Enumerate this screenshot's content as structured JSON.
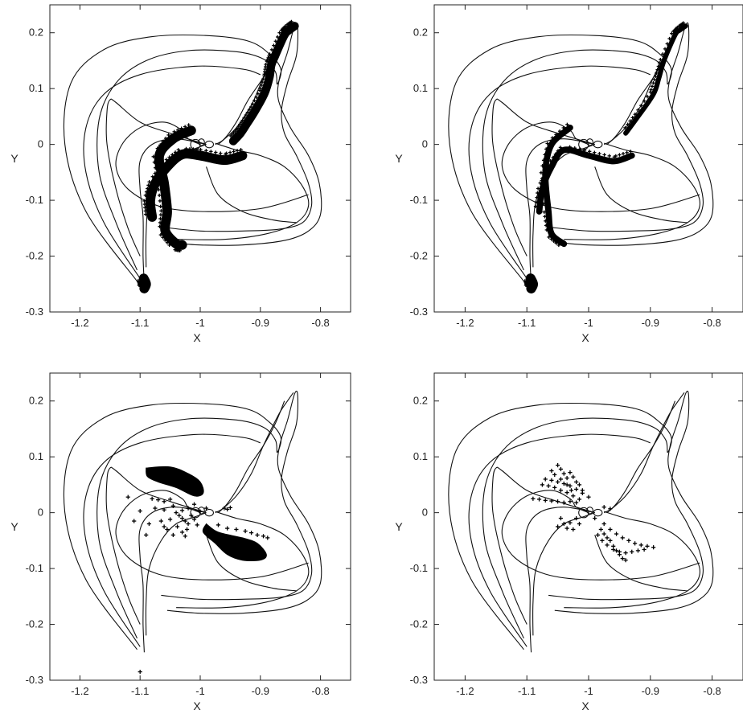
{
  "chart_data": [
    {
      "type": "scatter",
      "panel": "top-left",
      "xlabel": "X",
      "ylabel": "Y",
      "xlim": [
        -1.25,
        -0.75
      ],
      "ylim": [
        -0.3,
        0.25
      ],
      "xticks": [
        "-1.2",
        "-1.1",
        "-1",
        "-0.9",
        "-0.8"
      ],
      "yticks": [
        "-0.3",
        "-0.2",
        "-0.1",
        "0",
        "0.1",
        "0.2"
      ],
      "grid": false,
      "series": [
        {
          "kind": "arm",
          "points": [
            [
              -0.843,
              0.212
            ],
            [
              -0.852,
              0.205
            ],
            [
              -0.86,
              0.196
            ],
            [
              -0.876,
              0.158
            ],
            [
              -0.882,
              0.142
            ],
            [
              -0.885,
              0.12
            ],
            [
              -0.893,
              0.092
            ],
            [
              -0.908,
              0.062
            ],
            [
              -0.922,
              0.038
            ],
            [
              -0.933,
              0.02
            ],
            [
              -0.945,
              0.006
            ]
          ],
          "width": 0.007
        },
        {
          "kind": "arm",
          "points": [
            [
              -0.93,
              -0.02
            ],
            [
              -0.96,
              -0.028
            ],
            [
              -1.0,
              -0.02
            ],
            [
              -1.03,
              -0.018
            ],
            [
              -1.055,
              -0.04
            ],
            [
              -1.075,
              -0.07
            ],
            [
              -1.083,
              -0.1
            ],
            [
              -1.08,
              -0.13
            ]
          ],
          "width": 0.008
        },
        {
          "kind": "arm",
          "points": [
            [
              -1.015,
              0.025
            ],
            [
              -1.045,
              0.01
            ],
            [
              -1.068,
              -0.02
            ],
            [
              -1.06,
              -0.07
            ],
            [
              -1.055,
              -0.12
            ],
            [
              -1.058,
              -0.155
            ],
            [
              -1.04,
              -0.178
            ],
            [
              -1.03,
              -0.18
            ]
          ],
          "width": 0.008
        },
        {
          "kind": "arm",
          "points": [
            [
              -1.094,
              -0.24
            ],
            [
              -1.09,
              -0.25
            ],
            [
              -1.093,
              -0.258
            ]
          ],
          "width": 0.008
        }
      ]
    },
    {
      "type": "scatter",
      "panel": "top-right",
      "xlabel": "X",
      "ylabel": "Y",
      "xlim": [
        -1.25,
        -0.75
      ],
      "ylim": [
        -0.3,
        0.25
      ],
      "xticks": [
        "-1.2",
        "-1.1",
        "-1",
        "-0.9",
        "-0.8"
      ],
      "yticks": [
        "-0.3",
        "-0.2",
        "-0.1",
        "0",
        "0.1",
        "0.2"
      ],
      "grid": false,
      "series": [
        {
          "kind": "arm",
          "points": [
            [
              -0.843,
              0.212
            ],
            [
              -0.852,
              0.205
            ],
            [
              -0.86,
              0.196
            ],
            [
              -0.878,
              0.15
            ],
            [
              -0.886,
              0.12
            ],
            [
              -0.895,
              0.09
            ],
            [
              -0.92,
              0.05
            ],
            [
              -0.94,
              0.02
            ]
          ],
          "width": 0.004
        },
        {
          "kind": "arm",
          "points": [
            [
              -0.93,
              -0.02
            ],
            [
              -0.96,
              -0.03
            ],
            [
              -1.0,
              -0.02
            ],
            [
              -1.04,
              -0.01
            ],
            [
              -1.06,
              -0.04
            ],
            [
              -1.075,
              -0.08
            ],
            [
              -1.08,
              -0.12
            ]
          ],
          "width": 0.005
        },
        {
          "kind": "arm",
          "points": [
            [
              -1.03,
              0.03
            ],
            [
              -1.06,
              0.0
            ],
            [
              -1.07,
              -0.05
            ],
            [
              -1.065,
              -0.12
            ],
            [
              -1.06,
              -0.16
            ],
            [
              -1.04,
              -0.178
            ]
          ],
          "width": 0.005
        },
        {
          "kind": "arm",
          "points": [
            [
              -1.094,
              -0.24
            ],
            [
              -1.09,
              -0.25
            ],
            [
              -1.093,
              -0.258
            ]
          ],
          "width": 0.008
        }
      ]
    },
    {
      "type": "scatter",
      "panel": "bottom-left",
      "xlabel": "X",
      "ylabel": "Y",
      "xlim": [
        -1.25,
        -0.75
      ],
      "ylim": [
        -0.3,
        0.25
      ],
      "xticks": [
        "-1.2",
        "-1.1",
        "-1",
        "-0.9",
        "-0.8"
      ],
      "yticks": [
        "-0.3",
        "-0.2",
        "-0.1",
        "0",
        "0.1",
        "0.2"
      ],
      "grid": false,
      "series": [
        {
          "kind": "blob",
          "points": [
            [
              -1.09,
              0.08
            ],
            [
              -1.05,
              0.082
            ],
            [
              -1.02,
              0.07
            ],
            [
              -1.0,
              0.055
            ],
            [
              -0.995,
              0.035
            ],
            [
              -1.01,
              0.03
            ],
            [
              -1.04,
              0.045
            ],
            [
              -1.07,
              0.055
            ],
            [
              -1.088,
              0.065
            ]
          ]
        },
        {
          "kind": "blob",
          "points": [
            [
              -0.99,
              -0.02
            ],
            [
              -0.97,
              -0.035
            ],
            [
              -0.93,
              -0.045
            ],
            [
              -0.905,
              -0.055
            ],
            [
              -0.89,
              -0.075
            ],
            [
              -0.9,
              -0.085
            ],
            [
              -0.93,
              -0.085
            ],
            [
              -0.955,
              -0.075
            ],
            [
              -0.975,
              -0.055
            ],
            [
              -0.995,
              -0.035
            ]
          ]
        },
        {
          "kind": "scatter",
          "points": [
            [
              -1.08,
              0.025
            ],
            [
              -1.07,
              0.023
            ],
            [
              -1.06,
              0.02
            ],
            [
              -1.05,
              0.024
            ],
            [
              -1.045,
              0.012
            ],
            [
              -1.04,
              0.0
            ],
            [
              -1.035,
              -0.005
            ],
            [
              -1.03,
              -0.01
            ],
            [
              -1.025,
              -0.015
            ],
            [
              -1.02,
              -0.02
            ],
            [
              -1.038,
              -0.025
            ],
            [
              -1.05,
              -0.012
            ],
            [
              -1.06,
              0.005
            ],
            [
              -1.03,
              0.004
            ],
            [
              -1.02,
              0.008
            ],
            [
              -1.015,
              -0.005
            ],
            [
              -1.01,
              -0.012
            ],
            [
              -1.005,
              -0.022
            ],
            [
              -1.022,
              -0.03
            ],
            [
              -1.03,
              -0.035
            ],
            [
              -1.045,
              -0.04
            ],
            [
              -1.025,
              -0.042
            ],
            [
              -1.055,
              -0.03
            ],
            [
              -1.065,
              -0.015
            ],
            [
              -1.075,
              0.008
            ],
            [
              -1.085,
              -0.02
            ],
            [
              -1.06,
              -0.025
            ],
            [
              -1.01,
              0.015
            ],
            [
              -1.0,
              0.002
            ],
            [
              -0.99,
              0.008
            ],
            [
              -0.96,
              0.008
            ],
            [
              -0.955,
              0.006
            ],
            [
              -0.95,
              0.009
            ],
            [
              -0.97,
              -0.022
            ],
            [
              -0.955,
              -0.028
            ],
            [
              -0.94,
              -0.03
            ],
            [
              -0.925,
              -0.033
            ],
            [
              -0.915,
              -0.036
            ],
            [
              -0.905,
              -0.04
            ],
            [
              -0.895,
              -0.042
            ],
            [
              -0.888,
              -0.045
            ],
            [
              -1.1,
              0.003
            ],
            [
              -1.11,
              -0.015
            ],
            [
              -1.12,
              0.028
            ],
            [
              -1.09,
              -0.04
            ],
            [
              -1.1,
              -0.285
            ]
          ]
        }
      ]
    },
    {
      "type": "scatter",
      "panel": "bottom-right",
      "xlabel": "X",
      "ylabel": "Y",
      "xlim": [
        -1.25,
        -0.75
      ],
      "ylim": [
        -0.3,
        0.25
      ],
      "xticks": [
        "-1.2",
        "-1.1",
        "-1",
        "-0.9",
        "-0.8"
      ],
      "yticks": [
        "-0.3",
        "-0.2",
        "-0.1",
        "0",
        "0.1",
        "0.2"
      ],
      "grid": false,
      "series": [
        {
          "kind": "scatter",
          "points": [
            [
              -1.07,
              0.06
            ],
            [
              -1.06,
              0.058
            ],
            [
              -1.05,
              0.055
            ],
            [
              -1.04,
              0.052
            ],
            [
              -1.03,
              0.048
            ],
            [
              -1.02,
              0.042
            ],
            [
              -1.01,
              0.035
            ],
            [
              -1.0,
              0.028
            ],
            [
              -1.075,
              0.05
            ],
            [
              -1.065,
              0.048
            ],
            [
              -1.055,
              0.045
            ],
            [
              -1.045,
              0.04
            ],
            [
              -1.035,
              0.036
            ],
            [
              -1.025,
              0.03
            ],
            [
              -1.015,
              0.024
            ],
            [
              -1.05,
              0.085
            ],
            [
              -1.045,
              0.078
            ],
            [
              -1.04,
              0.07
            ],
            [
              -1.035,
              0.062
            ],
            [
              -1.03,
              0.072
            ],
            [
              -1.025,
              0.064
            ],
            [
              -1.02,
              0.055
            ],
            [
              -1.015,
              0.05
            ],
            [
              -1.01,
              0.04
            ],
            [
              -1.06,
              0.075
            ],
            [
              -1.055,
              0.068
            ],
            [
              -1.045,
              0.06
            ],
            [
              -1.035,
              0.05
            ],
            [
              -1.028,
              0.04
            ],
            [
              -1.09,
              0.025
            ],
            [
              -1.08,
              0.024
            ],
            [
              -1.07,
              0.022
            ],
            [
              -1.06,
              0.021
            ],
            [
              -1.05,
              0.02
            ],
            [
              -1.04,
              0.018
            ],
            [
              -1.03,
              0.02
            ],
            [
              -1.02,
              0.018
            ],
            [
              -1.045,
              -0.01
            ],
            [
              -1.04,
              -0.02
            ],
            [
              -1.035,
              -0.028
            ],
            [
              -1.03,
              -0.018
            ],
            [
              -1.02,
              -0.01
            ],
            [
              -1.015,
              -0.02
            ],
            [
              -1.05,
              -0.025
            ],
            [
              -1.025,
              -0.03
            ],
            [
              -0.98,
              -0.03
            ],
            [
              -0.975,
              -0.038
            ],
            [
              -0.97,
              -0.045
            ],
            [
              -0.965,
              -0.05
            ],
            [
              -0.96,
              -0.06
            ],
            [
              -0.955,
              -0.068
            ],
            [
              -0.95,
              -0.075
            ],
            [
              -0.945,
              -0.082
            ],
            [
              -0.94,
              -0.085
            ],
            [
              -0.985,
              -0.04
            ],
            [
              -0.978,
              -0.05
            ],
            [
              -0.97,
              -0.058
            ],
            [
              -0.96,
              -0.066
            ],
            [
              -0.95,
              -0.07
            ],
            [
              -0.94,
              -0.072
            ],
            [
              -0.93,
              -0.07
            ],
            [
              -0.92,
              -0.068
            ],
            [
              -0.91,
              -0.066
            ],
            [
              -0.975,
              -0.02
            ],
            [
              -0.965,
              -0.03
            ],
            [
              -0.955,
              -0.038
            ],
            [
              -0.945,
              -0.045
            ],
            [
              -0.935,
              -0.05
            ],
            [
              -0.925,
              -0.055
            ],
            [
              -0.915,
              -0.058
            ],
            [
              -0.905,
              -0.06
            ],
            [
              -0.895,
              -0.062
            ],
            [
              -0.99,
              -0.01
            ],
            [
              -0.975,
              0.01
            ],
            [
              -0.965,
              0.007
            ]
          ]
        }
      ]
    }
  ]
}
